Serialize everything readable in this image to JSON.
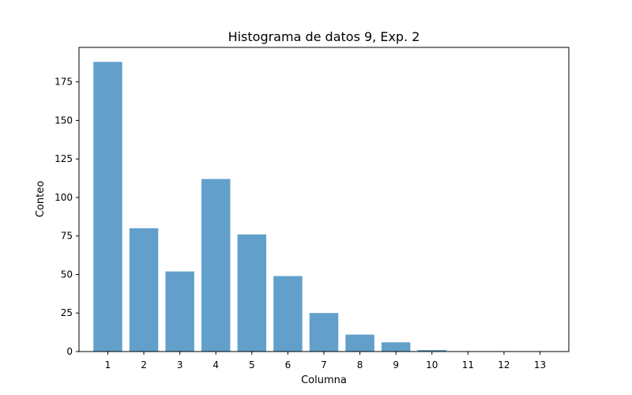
{
  "chart_data": {
    "type": "bar",
    "title": "Histograma de datos 9, Exp. 2",
    "xlabel": "Columna",
    "ylabel": "Conteo",
    "categories": [
      "1",
      "2",
      "3",
      "4",
      "5",
      "6",
      "7",
      "8",
      "9",
      "10",
      "11",
      "12",
      "13"
    ],
    "values": [
      188,
      80,
      52,
      112,
      76,
      49,
      25,
      11,
      6,
      1,
      0,
      0,
      0
    ],
    "yticks": [
      0,
      25,
      50,
      75,
      100,
      125,
      150,
      175
    ],
    "ylim": [
      0,
      197.4
    ],
    "xlim": [
      0.2,
      13.8
    ],
    "bar_color": "#62a0cb",
    "grid": false,
    "legend": "none"
  }
}
